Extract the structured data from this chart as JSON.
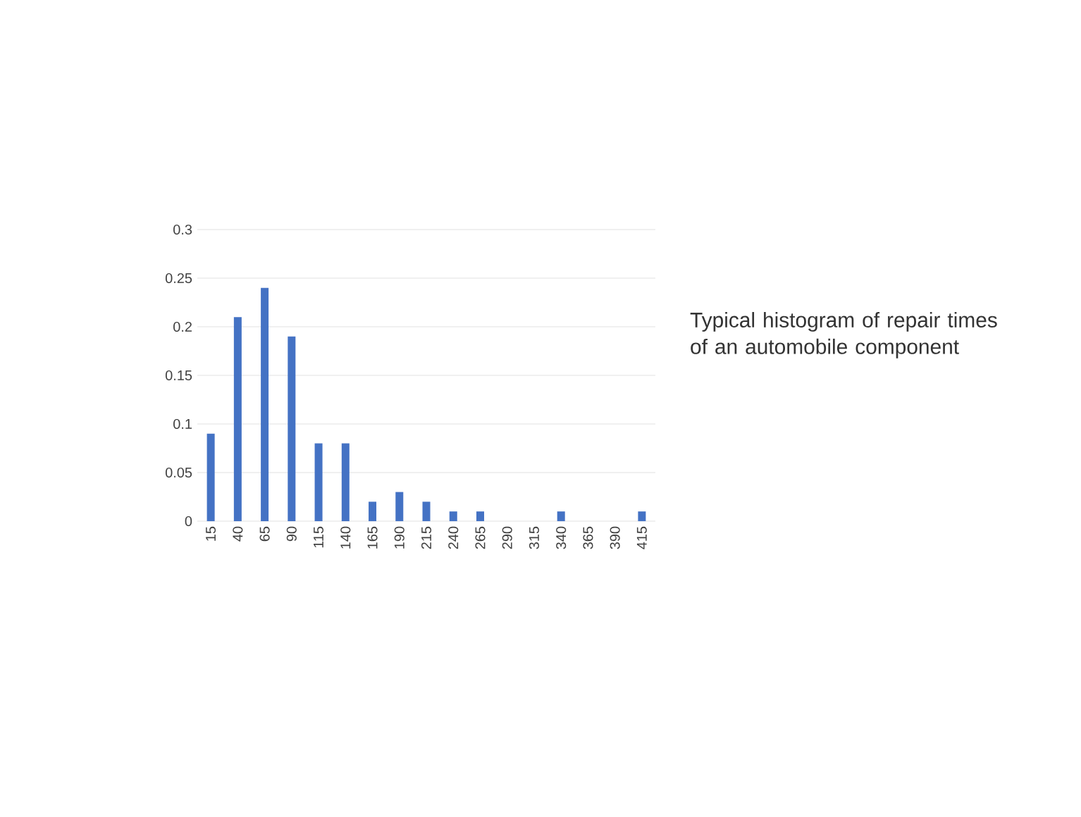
{
  "chart_data": {
    "type": "bar",
    "categories": [
      "15",
      "40",
      "65",
      "90",
      "115",
      "140",
      "165",
      "190",
      "215",
      "240",
      "265",
      "290",
      "315",
      "340",
      "365",
      "390",
      "415"
    ],
    "values": [
      0.09,
      0.21,
      0.24,
      0.19,
      0.08,
      0.08,
      0.02,
      0.03,
      0.02,
      0.01,
      0.01,
      0,
      0,
      0.01,
      0,
      0,
      0.01
    ],
    "color": "#4472c4",
    "ylim": [
      0,
      0.3
    ],
    "yticks": [
      0,
      0.05,
      0.1,
      0.15,
      0.2,
      0.25,
      0.3
    ],
    "grid": "y",
    "annotations": [
      "Typical histogram of repair times of an automobile component"
    ]
  }
}
